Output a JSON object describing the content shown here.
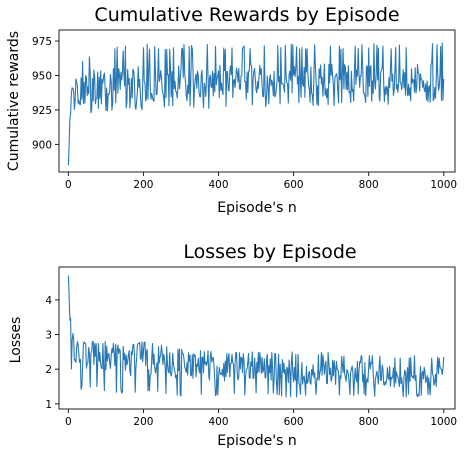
{
  "colors": {
    "series": "#2878b5"
  },
  "chart_data": [
    {
      "type": "line",
      "title": "Cumulative Rewards by Episode",
      "xlabel": "Episode's n",
      "ylabel": "Cumulative rewards",
      "xlim": [
        -25,
        1030
      ],
      "ylim": [
        880,
        983
      ],
      "xticks": [
        0,
        200,
        400,
        600,
        800,
        1000
      ],
      "yticks": [
        900,
        925,
        950,
        975
      ],
      "grid": false,
      "legend": "none",
      "series": [
        {
          "x": [
            0,
            5,
            10,
            15,
            20,
            30,
            40,
            50,
            60,
            80,
            100,
            120,
            150,
            200,
            250,
            300,
            350,
            400,
            450,
            500,
            550,
            600,
            650,
            700,
            750,
            800,
            850,
            900,
            950,
            1000
          ],
          "y": [
            885,
            922,
            935,
            928,
            940,
            938,
            940,
            941,
            942,
            942,
            942,
            943,
            943,
            944,
            944,
            944,
            945,
            945,
            945,
            945,
            945,
            945,
            946,
            946,
            946,
            946,
            946,
            946,
            947,
            948
          ],
          "range_low": [
            885,
            900,
            910,
            912,
            918,
            920,
            922,
            922,
            923,
            924,
            924,
            925,
            925,
            925,
            925,
            926,
            926,
            926,
            927,
            927,
            927,
            928,
            928,
            928,
            929,
            929,
            929,
            930,
            930,
            932
          ],
          "range_high": [
            885,
            930,
            944,
            948,
            955,
            960,
            963,
            965,
            968,
            970,
            971,
            972,
            972,
            973,
            973,
            973,
            973,
            973,
            973,
            973,
            973,
            973,
            973,
            973,
            973,
            973,
            973,
            973,
            973,
            975
          ]
        }
      ]
    },
    {
      "type": "line",
      "title": "Losses by Episode",
      "xlabel": "Episode's n",
      "ylabel": "Losses",
      "xlim": [
        -25,
        1030
      ],
      "ylim": [
        0.85,
        4.95
      ],
      "xticks": [
        0,
        200,
        400,
        600,
        800,
        1000
      ],
      "yticks": [
        1,
        2,
        3,
        4
      ],
      "grid": false,
      "legend": "none",
      "series": [
        {
          "x": [
            0,
            5,
            10,
            15,
            20,
            30,
            50,
            100,
            150,
            200,
            250,
            300,
            350,
            400,
            450,
            500,
            550,
            600,
            650,
            700,
            750,
            800,
            850,
            900,
            950,
            1000
          ],
          "y": [
            4.7,
            3.2,
            2.8,
            2.6,
            2.5,
            2.4,
            2.4,
            2.3,
            2.2,
            2.2,
            2.1,
            2.1,
            2.1,
            2.0,
            2.0,
            2.0,
            2.0,
            1.9,
            1.9,
            1.9,
            1.9,
            1.9,
            1.8,
            1.8,
            1.8,
            1.8
          ],
          "range_low": [
            4.7,
            2.2,
            1.7,
            1.6,
            1.5,
            1.4,
            1.4,
            1.3,
            1.3,
            1.3,
            1.2,
            1.2,
            1.2,
            1.2,
            1.2,
            1.2,
            1.2,
            1.2,
            1.2,
            1.2,
            1.2,
            1.2,
            1.2,
            1.2,
            1.2,
            1.2
          ],
          "range_high": [
            4.7,
            3.6,
            3.2,
            2.9,
            2.8,
            2.8,
            2.8,
            2.8,
            2.7,
            2.8,
            2.7,
            2.6,
            2.6,
            2.5,
            2.5,
            2.5,
            2.5,
            2.5,
            2.5,
            2.5,
            2.4,
            2.4,
            2.4,
            2.4,
            2.4,
            2.4
          ]
        }
      ]
    }
  ]
}
